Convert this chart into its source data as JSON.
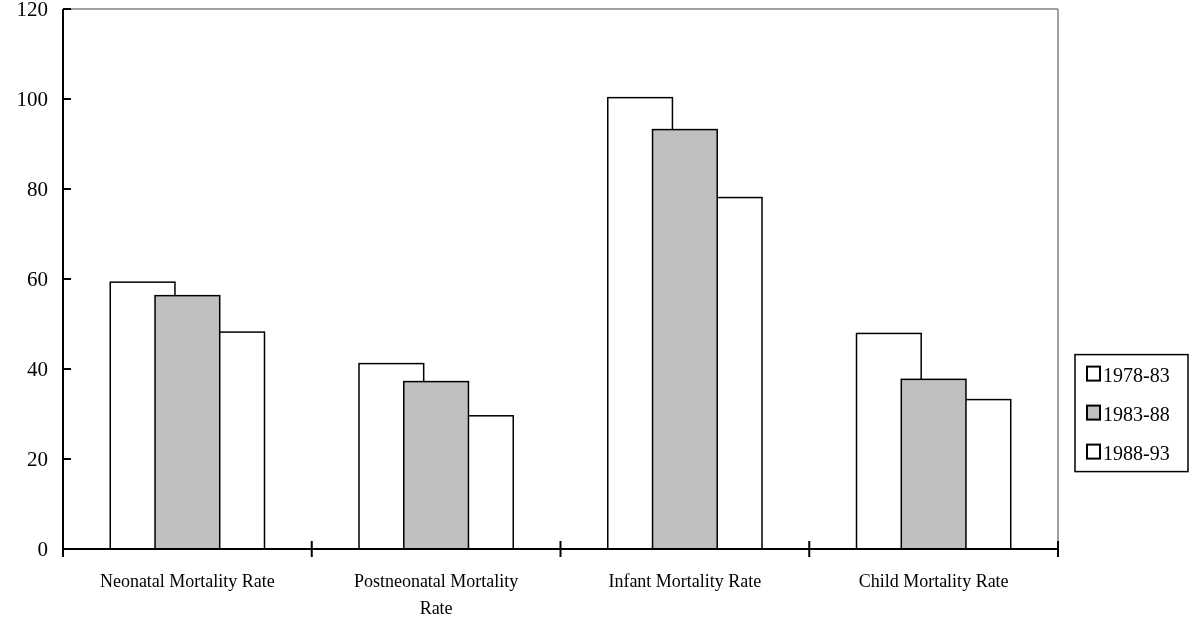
{
  "chart_data": {
    "type": "bar",
    "categories": [
      "Neonatal Mortality Rate",
      "Postneonatal Mortality Rate",
      "Infant Mortality Rate",
      "Child Mortality Rate"
    ],
    "series": [
      {
        "name": "1978-83",
        "color": "#ffffff",
        "values": [
          59.3,
          41.2,
          100.3,
          47.9
        ]
      },
      {
        "name": "1983-88",
        "color": "#c0c0c0",
        "values": [
          56.3,
          37.2,
          93.2,
          37.7
        ]
      },
      {
        "name": "1988-93",
        "color": "#ffffff",
        "values": [
          48.2,
          29.6,
          78.1,
          33.2
        ]
      }
    ],
    "ylim": [
      0,
      120
    ],
    "yticks": [
      0,
      20,
      40,
      60,
      80,
      100,
      120
    ],
    "grid": false,
    "legend": "right"
  }
}
